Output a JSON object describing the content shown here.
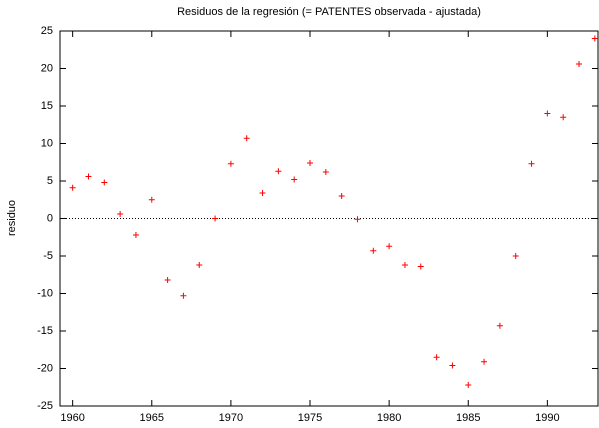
{
  "chart_data": {
    "type": "scatter",
    "title": "Residuos de la regresión (= PATENTES observada - ajustada)",
    "ylabel": "residuo",
    "x": [
      1960,
      1961,
      1962,
      1963,
      1964,
      1965,
      1966,
      1967,
      1968,
      1969,
      1970,
      1971,
      1972,
      1973,
      1974,
      1975,
      1976,
      1977,
      1978,
      1979,
      1980,
      1981,
      1982,
      1983,
      1984,
      1985,
      1986,
      1987,
      1988,
      1989,
      1990,
      1991,
      1992,
      1993
    ],
    "values": [
      4.1,
      5.6,
      4.8,
      0.6,
      -2.2,
      2.5,
      -8.2,
      -10.3,
      -6.2,
      0.0,
      7.3,
      10.7,
      3.4,
      6.3,
      5.2,
      7.4,
      6.2,
      3.0,
      -0.1,
      -4.3,
      -3.7,
      -6.2,
      -6.4,
      -18.5,
      -19.6,
      -22.2,
      -19.1,
      -14.3,
      -5.0,
      7.3,
      14.0,
      13.5,
      20.6,
      24.0
    ],
    "color": "#ff0000",
    "xlim": [
      1959.2,
      1993.2
    ],
    "xticks": [
      1960,
      1965,
      1970,
      1975,
      1980,
      1985,
      1990
    ],
    "ylim": [
      -25,
      25
    ],
    "yticks": [
      -25,
      -20,
      -15,
      -10,
      -5,
      0,
      5,
      10,
      15,
      20,
      25
    ],
    "zeroaxis": true
  }
}
